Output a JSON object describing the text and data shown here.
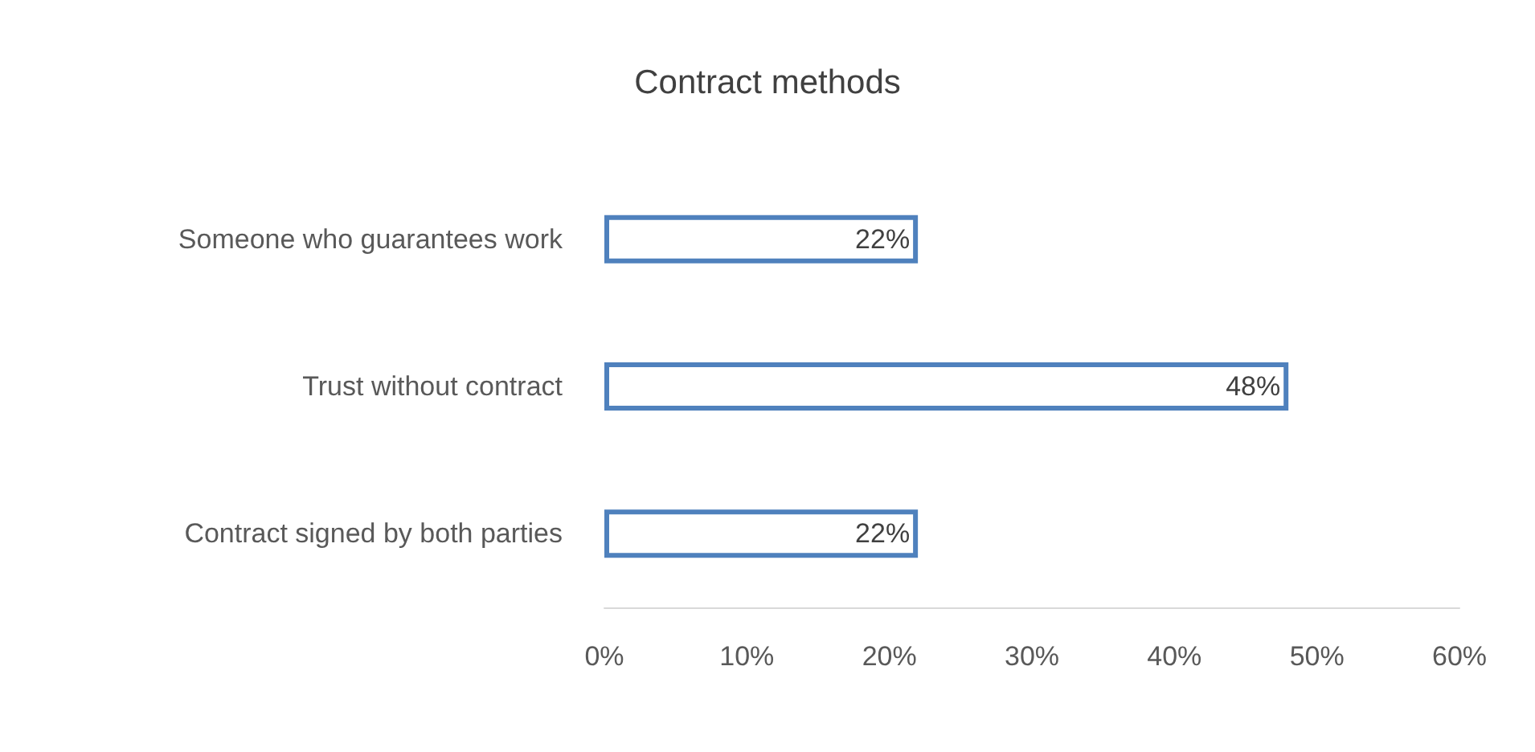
{
  "chart_data": {
    "type": "bar",
    "orientation": "horizontal",
    "title": "Contract methods",
    "categories": [
      "Someone who guarantees work",
      "Trust without contract",
      "Contract signed by both parties"
    ],
    "values": [
      22,
      48,
      22
    ],
    "value_labels": [
      "22%",
      "48%",
      "22%"
    ],
    "color": "#4f81bd",
    "xlim": [
      0,
      60
    ],
    "xticks": [
      {
        "value": 0,
        "label": "0%"
      },
      {
        "value": 10,
        "label": "10%"
      },
      {
        "value": 20,
        "label": "20%"
      },
      {
        "value": 30,
        "label": "30%"
      },
      {
        "value": 40,
        "label": "40%"
      },
      {
        "value": 50,
        "label": "50%"
      },
      {
        "value": 60,
        "label": "60%"
      }
    ],
    "grid": false
  }
}
